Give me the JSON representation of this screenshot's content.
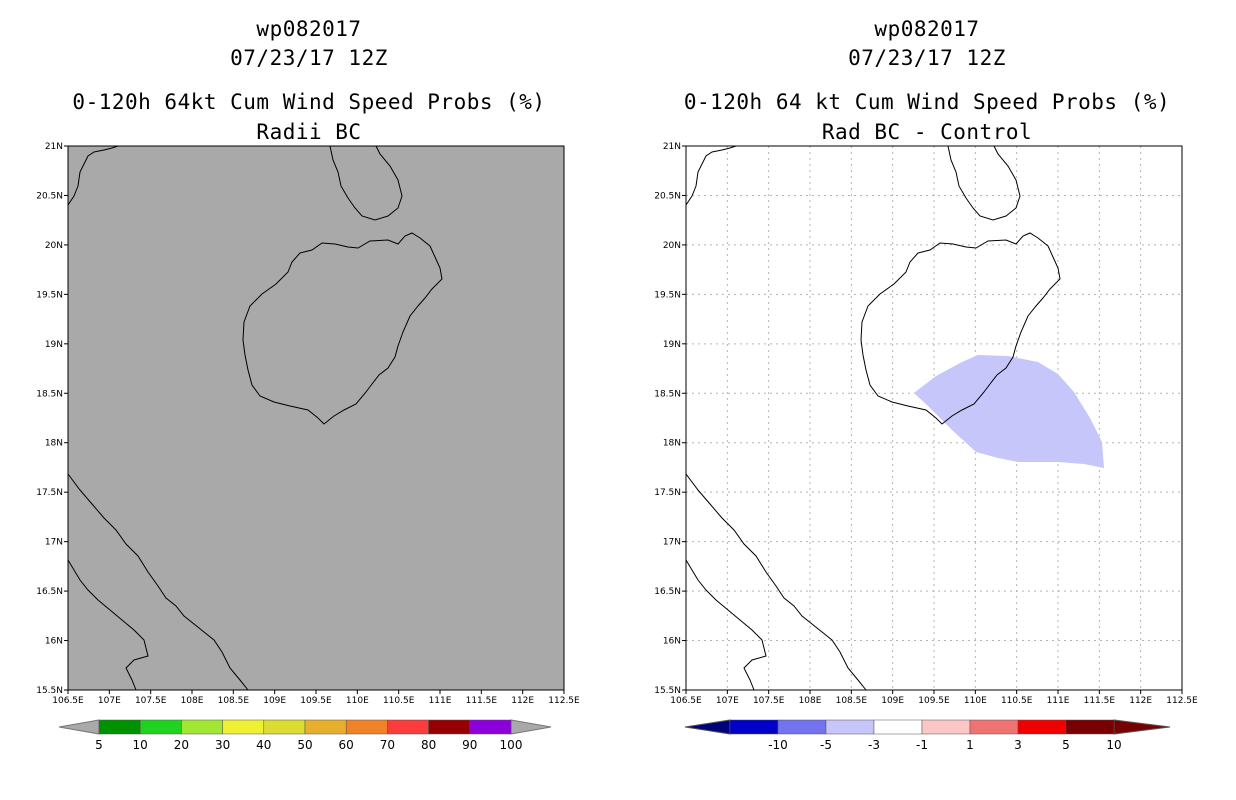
{
  "left_panel": {
    "storm_id": "wp082017",
    "datetime": "07/23/17 12Z",
    "product": "0-120h 64kt Cum Wind Speed Probs (%)",
    "subtitle": "Radii BC",
    "map_fill": "#a9a9a9",
    "colorbar": {
      "labels": [
        "5",
        "10",
        "20",
        "30",
        "40",
        "50",
        "60",
        "70",
        "80",
        "90",
        "100"
      ],
      "colors": [
        "#009100",
        "#21d321",
        "#a0e632",
        "#f0f032",
        "#dcdc32",
        "#e6af2d",
        "#f08228",
        "#fa3c3c",
        "#960000",
        "#8c00dc"
      ],
      "end_color": "#a9a9a9"
    }
  },
  "right_panel": {
    "storm_id": "wp082017",
    "datetime": "07/23/17 12Z",
    "product": "0-120h 64 kt Cum Wind Speed Probs (%)",
    "subtitle": "Rad BC - Control",
    "map_fill": "#ffffff",
    "anomaly_fill": "#c6c6fa",
    "colorbar": {
      "labels": [
        "-10",
        "-5",
        "-3",
        "-1",
        "1",
        "3",
        "5",
        "10"
      ],
      "colors": [
        "#0000c8",
        "#7373f0",
        "#c6c6fa",
        "#ffffff",
        "#fac6c6",
        "#f07373",
        "#f00000",
        "#780000"
      ],
      "low_end": "#00007a",
      "high_end": "#780000"
    }
  },
  "axes": {
    "lat_labels": [
      "21N",
      "20.5N",
      "20N",
      "19.5N",
      "19N",
      "18.5N",
      "18N",
      "17.5N",
      "17N",
      "16.5N",
      "16N",
      "15.5N"
    ],
    "lon_labels": [
      "106.5E",
      "107E",
      "107.5E",
      "108E",
      "108.5E",
      "109E",
      "109.5E",
      "110E",
      "110.5E",
      "111E",
      "111.5E",
      "112E",
      "112.5E"
    ]
  }
}
